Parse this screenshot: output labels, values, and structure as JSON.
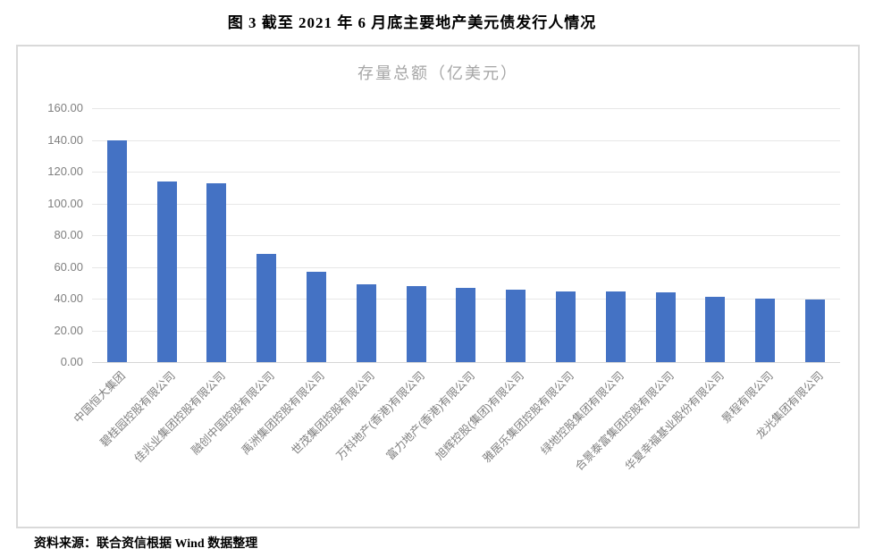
{
  "figure": {
    "caption": "图 3  截至 2021 年 6 月底主要地产美元债发行人情况",
    "source": "资料来源：联合资信根据 Wind 数据整理"
  },
  "chart_data": {
    "type": "bar",
    "title": "存量总额（亿美元）",
    "categories": [
      "中国恒大集团",
      "碧桂园控股有限公司",
      "佳兆业集团控股有限公司",
      "融创中国控股有限公司",
      "禹洲集团控股有限公司",
      "世茂集团控股有限公司",
      "万科地产(香港)有限公司",
      "富力地产(香港)有限公司",
      "旭辉控股(集团)有限公司",
      "雅居乐集团控股有限公司",
      "绿地控股集团有限公司",
      "合景泰富集团控股有限公司",
      "华夏幸福基业股份有限公司",
      "景程有限公司",
      "龙光集团有限公司"
    ],
    "values": [
      140,
      114,
      112.5,
      68,
      57,
      49,
      48,
      47,
      45.5,
      44.7,
      44.6,
      44,
      41,
      40,
      39.5
    ],
    "xlabel": "",
    "ylabel": "",
    "ylim": [
      0,
      160
    ],
    "ytick_step": 20,
    "ytick_decimals": 2,
    "grid": true,
    "legend_position": "none",
    "bar_color": "#4472c4",
    "tick_label_color": "#7f7f7f",
    "title_color": "#a6a6a6",
    "grid_color": "#e7e7e7",
    "frame_color": "#d9d9d9"
  }
}
